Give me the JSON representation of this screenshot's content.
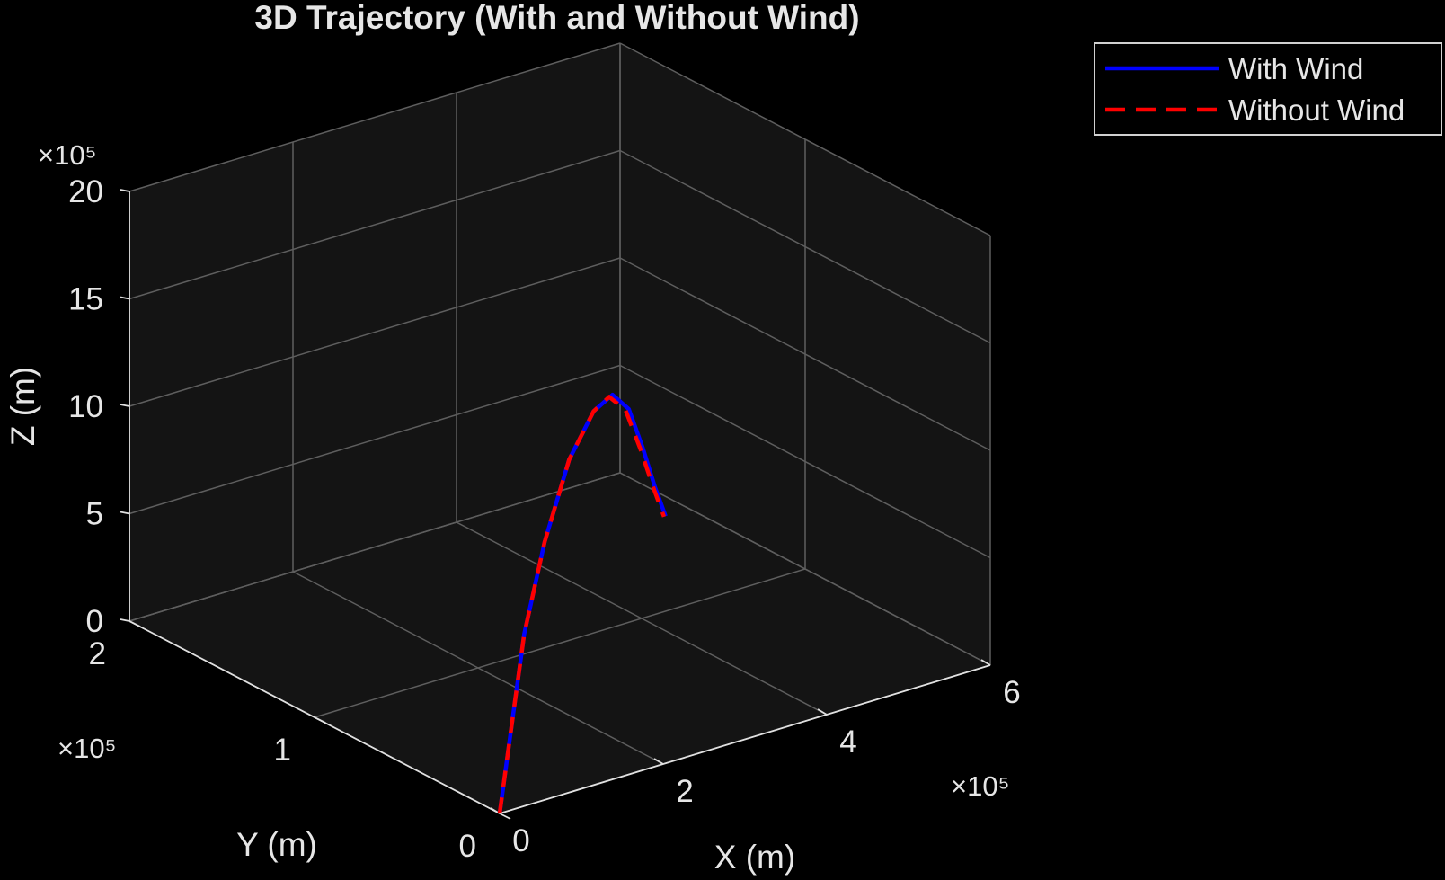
{
  "chart_data": {
    "type": "line",
    "title": "3D Trajectory (With and Without Wind)",
    "xlabel": "X (m)",
    "ylabel": "Y (m)",
    "zlabel": "Z (m)",
    "xlim": [
      0,
      600000
    ],
    "ylim": [
      0,
      200000
    ],
    "zlim": [
      0,
      2000000
    ],
    "x_ticks": [
      "0",
      "2",
      "4",
      "6"
    ],
    "y_ticks": [
      "0",
      "1",
      "2"
    ],
    "z_ticks": [
      "0",
      "5",
      "10",
      "15",
      "20"
    ],
    "x_exponent": "×10⁵",
    "y_exponent": "×10⁵",
    "z_exponent": "×10⁵",
    "grid": true,
    "legend_position": "top-right",
    "series": [
      {
        "name": "With Wind",
        "color": "#0000ff",
        "style": "solid",
        "points": [
          [
            0,
            0,
            0
          ],
          [
            15000,
            0,
            400000
          ],
          [
            30000,
            0,
            800000
          ],
          [
            55000,
            0,
            1200000
          ],
          [
            85000,
            0,
            1550000
          ],
          [
            115000,
            0,
            1740000
          ],
          [
            138000,
            0,
            1790000
          ],
          [
            158000,
            0,
            1700000
          ],
          [
            175000,
            0,
            1500000
          ],
          [
            190000,
            0,
            1300000
          ],
          [
            203000,
            0,
            1150000
          ]
        ]
      },
      {
        "name": "Without Wind",
        "color": "#ff0000",
        "style": "dashed",
        "points": [
          [
            0,
            0,
            0
          ],
          [
            15000,
            0,
            400000
          ],
          [
            30000,
            0,
            800000
          ],
          [
            55000,
            0,
            1200000
          ],
          [
            85000,
            0,
            1550000
          ],
          [
            115000,
            0,
            1740000
          ],
          [
            134000,
            0,
            1785000
          ],
          [
            154000,
            0,
            1700000
          ],
          [
            172000,
            0,
            1500000
          ],
          [
            188000,
            0,
            1300000
          ],
          [
            201000,
            0,
            1150000
          ]
        ]
      }
    ]
  }
}
